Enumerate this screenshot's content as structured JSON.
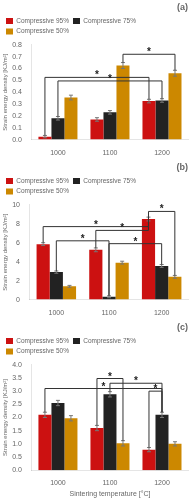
{
  "chart_data": [
    {
      "type": "bar",
      "title": "(a)",
      "categories": [
        "1000",
        "1100",
        "1200"
      ],
      "series": [
        {
          "name": "Compressive 95%",
          "color": "#cc1111",
          "values": [
            0.025,
            0.17,
            0.325
          ],
          "errors": [
            0.01,
            0.015,
            0.015
          ]
        },
        {
          "name": "Compressive 75%",
          "color": "#222222",
          "values": [
            0.18,
            0.23,
            0.33
          ],
          "errors": [
            0.015,
            0.015,
            0.015
          ]
        },
        {
          "name": "Compressive 50%",
          "color": "#cc8800",
          "values": [
            0.355,
            0.625,
            0.56
          ],
          "errors": [
            0.02,
            0.025,
            0.025
          ]
        }
      ],
      "ylabel": "Strain energy density [KJ/m²]",
      "ylim": [
        0,
        0.8
      ],
      "yticks": [
        {
          "value": 0,
          "label": "0.0"
        },
        0.1,
        0.2,
        0.3,
        0.4,
        0.5,
        0.6,
        0.7,
        0.8
      ],
      "grid": false,
      "legend": "upper left",
      "annotations": [
        {
          "text": "*",
          "from": {
            "category": "1000",
            "series": "Compressive 95%"
          },
          "to": {
            "category": "1200",
            "series": "Compressive 95%"
          },
          "y": 0.525,
          "y_from": 0.036,
          "y_to": 0.34
        },
        {
          "text": "*",
          "from": {
            "category": "1000",
            "series": "Compressive 75%"
          },
          "to": {
            "category": "1200",
            "series": "Compressive 75%"
          },
          "y": 0.495,
          "y_from": 0.195,
          "y_to": 0.345
        },
        {
          "text": "*",
          "from": {
            "category": "1100",
            "series": "Compressive 50%"
          },
          "to": {
            "category": "1200",
            "series": "Compressive 50%"
          },
          "y": 0.72,
          "y_from": 0.65,
          "y_to": 0.585
        }
      ]
    },
    {
      "type": "bar",
      "title": "(b)",
      "categories": [
        "1000",
        "1100",
        "1200"
      ],
      "series": [
        {
          "name": "Compressive 95%",
          "color": "#cc1111",
          "values": [
            5.85,
            5.25,
            8.5
          ],
          "errors": [
            0.15,
            0.2,
            0.2
          ]
        },
        {
          "name": "Compressive 75%",
          "color": "#222222",
          "values": [
            2.9,
            0.3,
            3.55
          ],
          "errors": [
            0.12,
            0.1,
            0.15
          ]
        },
        {
          "name": "Compressive 50%",
          "color": "#cc8800",
          "values": [
            1.4,
            3.9,
            2.4
          ],
          "errors": [
            0.1,
            0.15,
            0.15
          ]
        }
      ],
      "ylabel": "Strain energy density [KJ/m²]",
      "ylim": [
        0,
        10
      ],
      "yticks": [
        0,
        2,
        4,
        6,
        8,
        10
      ],
      "grid": false,
      "legend": "upper left",
      "annotations": [
        {
          "text": "*",
          "from": {
            "category": "1000",
            "series": "Compressive 95%"
          },
          "to": {
            "category": "1200",
            "series": "Compressive 95%"
          },
          "y": 7.7,
          "y_from": 6.0,
          "y_to": 8.7
        },
        {
          "text": "*",
          "from": {
            "category": "1100",
            "series": "Compressive 95%"
          },
          "to": {
            "category": "1200",
            "series": "Compressive 95%"
          },
          "y": 7.3,
          "y_from": 5.45,
          "y_to": 8.7
        },
        {
          "text": "*",
          "from": {
            "category": "1000",
            "series": "Compressive 75%"
          },
          "to": {
            "category": "1100",
            "series": "Compressive 75%"
          },
          "y": 6.2,
          "y_from": 3.02,
          "y_to": 0.41
        },
        {
          "text": "*",
          "from": {
            "category": "1100",
            "series": "Compressive 75%"
          },
          "to": {
            "category": "1200",
            "series": "Compressive 75%"
          },
          "y": 5.9,
          "y_from": 0.41,
          "y_to": 3.7
        },
        {
          "text": "*",
          "from": {
            "category": "1200",
            "series": "Compressive 95%"
          },
          "to": {
            "category": "1200",
            "series": "Compressive 50%"
          },
          "y": 9.3,
          "y_from": 8.7,
          "y_to": 2.55
        }
      ]
    },
    {
      "type": "bar",
      "title": "(c)",
      "categories": [
        "1000",
        "1100",
        "1200"
      ],
      "series": [
        {
          "name": "Compressive 95%",
          "color": "#cc1111",
          "values": [
            2.1,
            1.6,
            0.78
          ],
          "errors": [
            0.1,
            0.1,
            0.08
          ]
        },
        {
          "name": "Compressive 75%",
          "color": "#222222",
          "values": [
            2.55,
            2.88,
            2.1
          ],
          "errors": [
            0.1,
            0.1,
            0.1
          ]
        },
        {
          "name": "Compressive 50%",
          "color": "#cc8800",
          "values": [
            1.97,
            1.02,
            1.0
          ],
          "errors": [
            0.1,
            0.1,
            0.08
          ]
        }
      ],
      "xlabel": "Sintering temperature [°C]",
      "ylabel": "Strain energy density [KJ/m²]",
      "ylim": [
        0,
        4
      ],
      "yticks": [
        {
          "value": 0,
          "label": "0.0"
        },
        0.5,
        {
          "value": 1,
          "label": "1.0"
        },
        1.5,
        {
          "value": 2,
          "label": "2.0"
        },
        2.5,
        {
          "value": 3,
          "label": "3.0"
        },
        3.5,
        {
          "value": 4,
          "label": "4.0"
        }
      ],
      "grid": false,
      "legend": "upper left",
      "annotations": [
        {
          "text": "*",
          "from": {
            "category": "1000",
            "series": "Compressive 95%"
          },
          "to": {
            "category": "1200",
            "series": "Compressive 75%"
          },
          "y": 3.1,
          "y_from": 2.2,
          "y_to": 2.2
        },
        {
          "text": "*",
          "from": {
            "category": "1100",
            "series": "Compressive 95%"
          },
          "to": {
            "category": "1100",
            "series": "Compressive 50%"
          },
          "y": 3.48,
          "y_from": 1.7,
          "y_to": 1.12
        },
        {
          "text": "*",
          "from": {
            "category": "1100",
            "series": "Compressive 75%"
          },
          "to": {
            "category": "1200",
            "series": "Compressive 75%"
          },
          "y": 3.3,
          "y_from": 2.98,
          "y_to": 2.2
        },
        {
          "text": "*",
          "from": {
            "category": "1200",
            "series": "Compressive 95%"
          },
          "to": {
            "category": "1200",
            "series": "Compressive 75%"
          },
          "y": 3.0,
          "y_from": 0.86,
          "y_to": 2.2
        }
      ]
    }
  ]
}
